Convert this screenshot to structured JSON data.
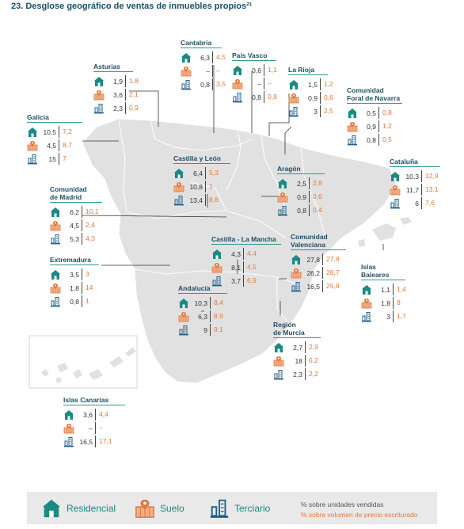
{
  "title": "23. Desglose geográfico de ventas de inmuebles propios²¹",
  "colors": {
    "teal": "#1a8a82",
    "orange": "#e07a3c",
    "navy": "#1f4f66",
    "map_fill": "#e0e0e0",
    "map_border": "#ffffff"
  },
  "icons": {
    "residencial": "house-icon",
    "suelo": "land-plot-icon",
    "terciario": "office-building-icon"
  },
  "regions": {
    "asturias": {
      "name": "Asturias",
      "residencial": [
        "1,9",
        "1,8"
      ],
      "suelo": [
        "3,6",
        "2,1"
      ],
      "terciario": [
        "2,3",
        "0,9"
      ]
    },
    "cantabria": {
      "name": "Cantabria",
      "residencial": [
        "6,3",
        "4,5"
      ],
      "suelo": [
        "–",
        "–"
      ],
      "terciario": [
        "0,8",
        "3,5"
      ]
    },
    "paisvasco": {
      "name": "País Vasco",
      "residencial": [
        "0,6",
        "1,1"
      ],
      "suelo": [
        "–",
        "–"
      ],
      "terciario": [
        "0,8",
        "0,9"
      ]
    },
    "larioja": {
      "name": "La Rioja",
      "residencial": [
        "1,5",
        "1,2"
      ],
      "suelo": [
        "0,9",
        "0,6"
      ],
      "terciario": [
        "3",
        "2,5"
      ]
    },
    "navarra": {
      "name": "Comunidad\nForal de Navarra",
      "residencial": [
        "0,5",
        "0,8"
      ],
      "suelo": [
        "0,9",
        "1,2"
      ],
      "terciario": [
        "0,8",
        "0,5"
      ]
    },
    "galicia": {
      "name": "Galicia",
      "residencial": [
        "10,5",
        "7,2"
      ],
      "suelo": [
        "4,5",
        "8,7"
      ],
      "terciario": [
        "15",
        "7"
      ]
    },
    "castillaleon": {
      "name": "Castilla y León",
      "residencial": [
        "6,4",
        "5,3"
      ],
      "suelo": [
        "10,8",
        "1"
      ],
      "terciario": [
        "13,4",
        "8,6"
      ]
    },
    "aragon": {
      "name": "Aragón",
      "residencial": [
        "2,5",
        "2,8"
      ],
      "suelo": [
        "0,9",
        "0,6"
      ],
      "terciario": [
        "0,8",
        "0,4"
      ]
    },
    "cataluna": {
      "name": "Cataluña",
      "residencial": [
        "10,3",
        "12,9"
      ],
      "suelo": [
        "11,7",
        "13,1"
      ],
      "terciario": [
        "6",
        "7,6"
      ]
    },
    "madrid": {
      "name": "Comunidad\nde Madrid",
      "residencial": [
        "6,2",
        "10,1"
      ],
      "suelo": [
        "4,5",
        "2,4"
      ],
      "terciario": [
        "5,3",
        "4,3"
      ]
    },
    "castillamancha": {
      "name": "Castilla - La Mancha",
      "residencial": [
        "4,3",
        "4,4"
      ],
      "suelo": [
        "8,1",
        "4,5"
      ],
      "terciario": [
        "3,7",
        "6,9"
      ]
    },
    "valenciana": {
      "name": "Comunidad\nValenciana",
      "residencial": [
        "27,8",
        "27,8"
      ],
      "suelo": [
        "26,2",
        "28,7"
      ],
      "terciario": [
        "16,5",
        "25,8"
      ]
    },
    "extremadura": {
      "name": "Extremadura",
      "residencial": [
        "3,5",
        "3"
      ],
      "suelo": [
        "1,8",
        "14"
      ],
      "terciario": [
        "0,8",
        "1"
      ]
    },
    "baleares": {
      "name": "Islas\nBaleares",
      "residencial": [
        "1,1",
        "1,4"
      ],
      "suelo": [
        "1,8",
        "8"
      ],
      "terciario": [
        "3",
        "1,7"
      ]
    },
    "andalucia": {
      "name": "Andalucía",
      "residencial": [
        "10,3",
        "8,4"
      ],
      "suelo": [
        "6,3",
        "8,9"
      ],
      "terciario": [
        "9",
        "9,1"
      ]
    },
    "murcia": {
      "name": "Región\nde Murcia",
      "residencial": [
        "2,7",
        "2,9"
      ],
      "suelo": [
        "18",
        "6,2"
      ],
      "terciario": [
        "2,3",
        "2,2"
      ]
    },
    "canarias": {
      "name": "Islas Canarias",
      "residencial": [
        "3,6",
        "4,4"
      ],
      "suelo": [
        "–",
        "–"
      ],
      "terciario": [
        "16,5",
        "17,1"
      ]
    }
  },
  "legend": {
    "residencial": "Residencial",
    "suelo": "Suelo",
    "terciario": "Terciario",
    "note_units": "% sobre unidades vendidas",
    "note_volume": "% sobre volumen de precio escriturado"
  }
}
